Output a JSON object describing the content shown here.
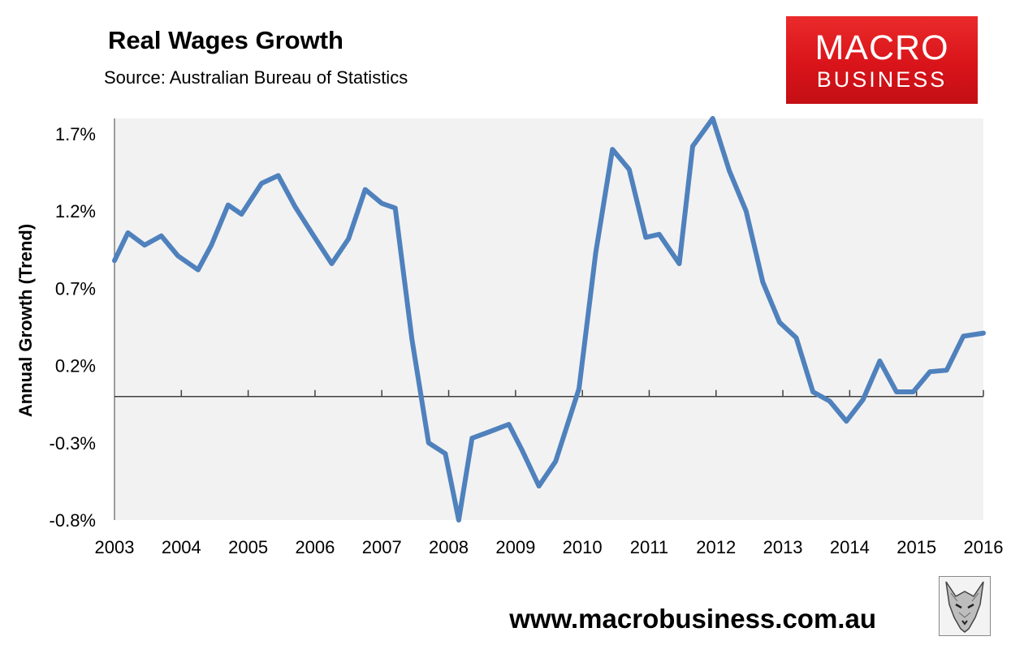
{
  "title": "Real Wages Growth",
  "subtitle": "Source: Australian Bureau of Statistics",
  "logo": {
    "line1": "MACRO",
    "line2": "BUSINESS",
    "color": "#d9141a"
  },
  "website": "www.macrobusiness.com.au",
  "colors": {
    "line": "#4f81bd",
    "plot_bg": "#f2f2f2",
    "axis": "#7f7f7f"
  },
  "chart_data": {
    "type": "line",
    "title": "Real Wages Growth",
    "ylabel": "Annual Growth (Trend)",
    "xlabel": "",
    "ylim": [
      -0.8,
      1.8
    ],
    "xlim": [
      2003,
      2016
    ],
    "yticks": [
      1.7,
      1.2,
      0.7,
      0.2,
      -0.3,
      -0.8
    ],
    "ytick_labels": [
      "1.7%",
      "1.2%",
      "0.7%",
      "0.2%",
      "-0.3%",
      "-0.8%"
    ],
    "xtick_labels": [
      "2003",
      "2004",
      "2005",
      "2006",
      "2007",
      "2008",
      "2009",
      "2010",
      "2011",
      "2012",
      "2013",
      "2014",
      "2015",
      "2016"
    ],
    "grid": false,
    "series": [
      {
        "values": [
          [
            2003.0,
            0.88
          ],
          [
            2003.2,
            1.06
          ],
          [
            2003.45,
            0.98
          ],
          [
            2003.7,
            1.04
          ],
          [
            2003.95,
            0.91
          ],
          [
            2004.25,
            0.82
          ],
          [
            2004.45,
            0.98
          ],
          [
            2004.7,
            1.24
          ],
          [
            2004.9,
            1.18
          ],
          [
            2005.2,
            1.38
          ],
          [
            2005.45,
            1.43
          ],
          [
            2005.7,
            1.23
          ],
          [
            2005.95,
            1.06
          ],
          [
            2006.25,
            0.86
          ],
          [
            2006.5,
            1.02
          ],
          [
            2006.75,
            1.34
          ],
          [
            2007.0,
            1.25
          ],
          [
            2007.2,
            1.22
          ],
          [
            2007.45,
            0.37
          ],
          [
            2007.7,
            -0.3
          ],
          [
            2007.95,
            -0.37
          ],
          [
            2008.15,
            -0.8
          ],
          [
            2008.35,
            -0.27
          ],
          [
            2008.6,
            -0.23
          ],
          [
            2008.9,
            -0.18
          ],
          [
            2009.1,
            -0.35
          ],
          [
            2009.35,
            -0.58
          ],
          [
            2009.6,
            -0.42
          ],
          [
            2009.95,
            0.05
          ],
          [
            2010.2,
            0.93
          ],
          [
            2010.45,
            1.6
          ],
          [
            2010.7,
            1.47
          ],
          [
            2010.95,
            1.03
          ],
          [
            2011.15,
            1.05
          ],
          [
            2011.45,
            0.86
          ],
          [
            2011.65,
            1.62
          ],
          [
            2011.95,
            1.8
          ],
          [
            2012.2,
            1.46
          ],
          [
            2012.45,
            1.2
          ],
          [
            2012.7,
            0.74
          ],
          [
            2012.95,
            0.48
          ],
          [
            2013.2,
            0.38
          ],
          [
            2013.45,
            0.03
          ],
          [
            2013.7,
            -0.03
          ],
          [
            2013.95,
            -0.16
          ],
          [
            2014.2,
            -0.02
          ],
          [
            2014.45,
            0.23
          ],
          [
            2014.7,
            0.03
          ],
          [
            2014.95,
            0.03
          ],
          [
            2015.2,
            0.16
          ],
          [
            2015.45,
            0.17
          ],
          [
            2015.7,
            0.39
          ],
          [
            2016.0,
            0.41
          ]
        ]
      }
    ]
  }
}
